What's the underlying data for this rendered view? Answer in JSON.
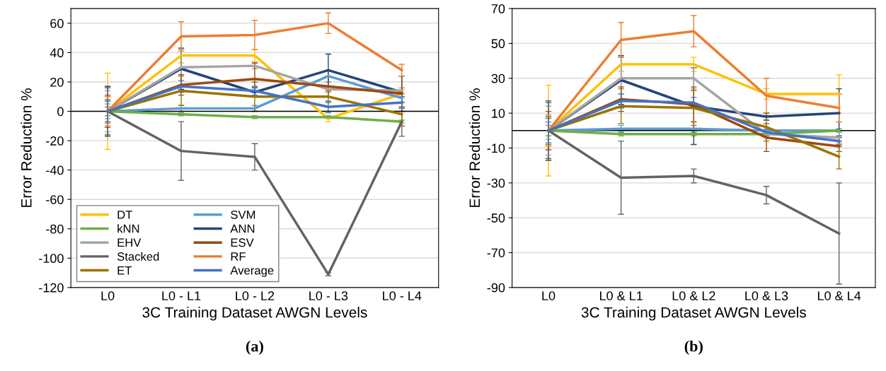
{
  "chart_data": [
    {
      "type": "line",
      "categories": [
        "L0",
        "L0 - L1",
        "L0 - L2",
        "L0 - L3",
        "L0 - L4"
      ],
      "xlabel": "3C Training Dataset AWGN Levels",
      "ylabel": "Error Reduction %",
      "ylim": [
        -120,
        70
      ],
      "yticks": [
        -120,
        -100,
        -80,
        -60,
        -40,
        -20,
        0,
        20,
        40,
        60
      ],
      "grid": "y",
      "legend": "bottom left",
      "marker": "none",
      "line_style": "solid",
      "ref_lines": [
        {
          "axis": "y",
          "value": 0,
          "color": "#000000"
        }
      ],
      "annotations": [
        "(a)"
      ],
      "series": [
        {
          "name": "DT",
          "color": "#ffc000",
          "values": [
            0,
            38,
            38,
            -5,
            12
          ],
          "errors": [
            26,
            5,
            4,
            2,
            3
          ]
        },
        {
          "name": "SVM",
          "color": "#5b9bd5",
          "values": [
            0,
            2,
            2,
            24,
            9
          ],
          "errors": [
            5,
            2,
            2,
            4,
            3
          ]
        },
        {
          "name": "kNN",
          "color": "#70ad47",
          "values": [
            0,
            -2,
            -4,
            -4,
            -7
          ],
          "errors": [
            3,
            1,
            1,
            1,
            1
          ]
        },
        {
          "name": "ANN",
          "color": "#264478",
          "values": [
            0,
            29,
            13,
            28,
            13
          ],
          "errors": [
            17,
            14,
            3,
            11,
            11
          ]
        },
        {
          "name": "EHV",
          "color": "#a5a5a5",
          "values": [
            0,
            30,
            31,
            15,
            14
          ],
          "errors": [
            14,
            12,
            2,
            2,
            2
          ]
        },
        {
          "name": "ESV",
          "color": "#9e480e",
          "values": [
            0,
            18,
            22,
            17,
            12
          ],
          "errors": [
            11,
            7,
            11,
            7,
            12
          ]
        },
        {
          "name": "Stacked",
          "color": "#636363",
          "values": [
            0,
            -27,
            -31,
            -111,
            -7
          ],
          "errors": [
            16,
            20,
            9,
            1,
            10
          ]
        },
        {
          "name": "RF",
          "color": "#ed7d31",
          "values": [
            0,
            51,
            52,
            60,
            28
          ],
          "errors": [
            10,
            10,
            10,
            7,
            4
          ]
        },
        {
          "name": "ET",
          "color": "#997300",
          "values": [
            0,
            14,
            10,
            10,
            -2
          ],
          "errors": [
            8,
            10,
            10,
            4,
            8
          ]
        },
        {
          "name": "Average",
          "color": "#4472c4",
          "values": [
            0,
            17,
            14,
            3,
            6
          ],
          "errors": [
            7,
            4,
            3,
            4,
            4
          ]
        }
      ]
    },
    {
      "type": "line",
      "categories": [
        "L0",
        "L0 & L1",
        "L0 & L2",
        "L0 & L3",
        "L0 & L4"
      ],
      "xlabel": "3C Training Dataset AWGN Levels",
      "ylabel": "Error Reduction %",
      "ylim": [
        -90,
        70
      ],
      "yticks": [
        -90,
        -70,
        -50,
        -30,
        -10,
        10,
        30,
        50,
        70
      ],
      "grid": "y",
      "marker": "none",
      "line_style": "solid",
      "ref_lines": [
        {
          "axis": "y",
          "value": 0,
          "color": "#000000"
        }
      ],
      "annotations": [
        "(b)"
      ],
      "series": [
        {
          "color": "#ffc000",
          "values": [
            0,
            38,
            38,
            21,
            21
          ],
          "errors": [
            26,
            4,
            4,
            3,
            11
          ]
        },
        {
          "color": "#5b9bd5",
          "values": [
            0,
            1,
            1,
            0,
            0
          ],
          "errors": [
            5,
            2,
            null,
            1,
            1
          ]
        },
        {
          "color": "#70ad47",
          "values": [
            0,
            -2,
            -2,
            -2,
            0
          ],
          "errors": [
            3,
            1,
            1,
            1,
            1
          ]
        },
        {
          "color": "#264478",
          "values": [
            0,
            29,
            14,
            8,
            10
          ],
          "errors": [
            17,
            14,
            22,
            2,
            14
          ]
        },
        {
          "color": "#a5a5a5",
          "values": [
            0,
            30,
            30,
            -2,
            -4
          ],
          "errors": [
            14,
            12,
            6,
            2,
            3
          ]
        },
        {
          "color": "#9e480e",
          "values": [
            0,
            18,
            15,
            -4,
            -9
          ],
          "errors": [
            11,
            7,
            10,
            8,
            3
          ]
        },
        {
          "color": "#636363",
          "values": [
            0,
            -27,
            -26,
            -37,
            -59
          ],
          "errors": [
            16,
            21,
            4,
            5,
            29
          ]
        },
        {
          "color": "#ed7d31",
          "values": [
            0,
            52,
            57,
            20,
            13
          ],
          "errors": [
            9,
            10,
            9,
            10,
            8
          ]
        },
        {
          "color": "#997300",
          "values": [
            0,
            14,
            13,
            2,
            -15
          ],
          "errors": [
            8,
            10,
            10,
            8,
            7
          ]
        },
        {
          "color": "#4472c4",
          "values": [
            0,
            17,
            16,
            -1,
            -6
          ],
          "errors": [
            7,
            4,
            3,
            null,
            3
          ]
        }
      ]
    }
  ]
}
